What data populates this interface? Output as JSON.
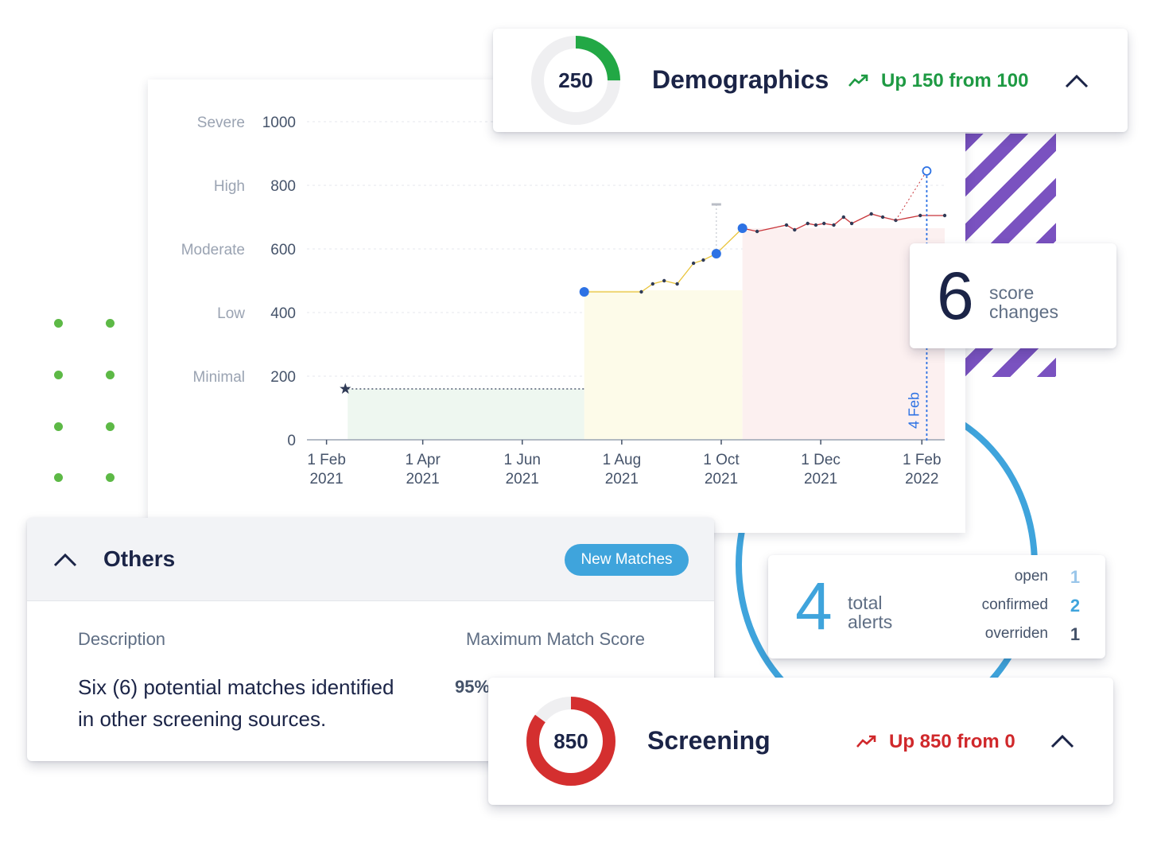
{
  "demographics": {
    "score": "250",
    "title": "Demographics",
    "trend_text": "Up 150 from 100",
    "trend_color": "#1e9a43",
    "ring_color": "#22a845",
    "ring_fraction": 0.25
  },
  "screening": {
    "score": "850",
    "title": "Screening",
    "trend_text": "Up 850 from 0",
    "trend_color": "#d0282b",
    "ring_color": "#d42f2f",
    "ring_fraction": 0.85
  },
  "score_changes": {
    "count": "6",
    "label_line1": "score",
    "label_line2": "changes"
  },
  "alerts": {
    "count": "4",
    "label_line1": "total",
    "label_line2": "alerts",
    "rows": [
      {
        "label": "open",
        "value": "1",
        "color": "#9ac6ea"
      },
      {
        "label": "confirmed",
        "value": "2",
        "color": "#3fa4dc"
      },
      {
        "label": "overriden",
        "value": "1",
        "color": "#45536a"
      }
    ]
  },
  "others": {
    "title": "Others",
    "badge": "New Matches",
    "col_description": "Description",
    "col_score": "Maximum Match Score",
    "description_line1": "Six (6) potential matches identified",
    "description_line2": "in other screening sources.",
    "score": "95%"
  },
  "chart_data": {
    "type": "line",
    "x_label_format": "day month / year",
    "x_ticks": [
      {
        "date": "2021-02-01",
        "line1": "1 Feb",
        "line2": "2021"
      },
      {
        "date": "2021-04-01",
        "line1": "1 Apr",
        "line2": "2021"
      },
      {
        "date": "2021-06-01",
        "line1": "1 Jun",
        "line2": "2021"
      },
      {
        "date": "2021-08-01",
        "line1": "1 Aug",
        "line2": "2021"
      },
      {
        "date": "2021-10-01",
        "line1": "1 Oct",
        "line2": "2021"
      },
      {
        "date": "2021-12-01",
        "line1": "1 Dec",
        "line2": "2021"
      },
      {
        "date": "2022-02-01",
        "line1": "1 Feb",
        "line2": "2022"
      }
    ],
    "y_ticks": [
      0,
      200,
      400,
      600,
      800,
      1000
    ],
    "y_levels": [
      {
        "value": 200,
        "label": "Minimal"
      },
      {
        "value": 400,
        "label": "Low"
      },
      {
        "value": 600,
        "label": "Moderate"
      },
      {
        "value": 800,
        "label": "High"
      },
      {
        "value": 1000,
        "label": "Severe"
      }
    ],
    "ylim": [
      0,
      1000
    ],
    "xlim": [
      "2021-01-20",
      "2022-02-15"
    ],
    "marker_label": "4 Feb",
    "marker_date": "2022-02-04",
    "marker_value": 845,
    "bands": [
      {
        "from": "2021-02-14",
        "to": "2021-07-09",
        "value": 160,
        "color": "#eef7f0"
      },
      {
        "from": "2021-07-09",
        "to": "2021-10-14",
        "value": 470,
        "color": "#fdfbe9"
      },
      {
        "from": "2021-10-14",
        "to": "2022-02-15",
        "value": 665,
        "color": "#fcf0f0"
      }
    ],
    "series": [
      {
        "color": "#2f3a56",
        "dashed": true,
        "points": [
          {
            "date": "2021-02-14",
            "value": 160
          },
          {
            "date": "2021-07-09",
            "value": 160
          }
        ]
      },
      {
        "color": "#e9c43b",
        "points": [
          {
            "date": "2021-07-09",
            "value": 465
          },
          {
            "date": "2021-08-13",
            "value": 465
          },
          {
            "date": "2021-08-20",
            "value": 490
          },
          {
            "date": "2021-08-27",
            "value": 500
          },
          {
            "date": "2021-09-04",
            "value": 490
          },
          {
            "date": "2021-09-14",
            "value": 555
          },
          {
            "date": "2021-09-20",
            "value": 565
          },
          {
            "date": "2021-09-28",
            "value": 585
          },
          {
            "date": "2021-10-14",
            "value": 665
          }
        ]
      },
      {
        "color": "#c8353a",
        "points": [
          {
            "date": "2021-10-14",
            "value": 665
          },
          {
            "date": "2021-10-23",
            "value": 655
          },
          {
            "date": "2021-11-10",
            "value": 675
          },
          {
            "date": "2021-11-15",
            "value": 660
          },
          {
            "date": "2021-11-23",
            "value": 680
          },
          {
            "date": "2021-11-28",
            "value": 675
          },
          {
            "date": "2021-12-03",
            "value": 680
          },
          {
            "date": "2021-12-09",
            "value": 675
          },
          {
            "date": "2021-12-15",
            "value": 700
          },
          {
            "date": "2021-12-20",
            "value": 680
          },
          {
            "date": "2022-01-01",
            "value": 710
          },
          {
            "date": "2022-01-08",
            "value": 700
          },
          {
            "date": "2022-01-16",
            "value": 690
          },
          {
            "date": "2022-01-31",
            "value": 705
          },
          {
            "date": "2022-02-15",
            "value": 705
          }
        ]
      }
    ],
    "highlight_points": [
      {
        "date": "2021-07-09",
        "value": 465
      },
      {
        "date": "2021-09-28",
        "value": 585
      },
      {
        "date": "2021-10-14",
        "value": 665
      }
    ],
    "start_point": {
      "date": "2021-02-14",
      "value": 160
    },
    "ghost_point": {
      "date": "2021-09-28",
      "value": 740
    }
  }
}
